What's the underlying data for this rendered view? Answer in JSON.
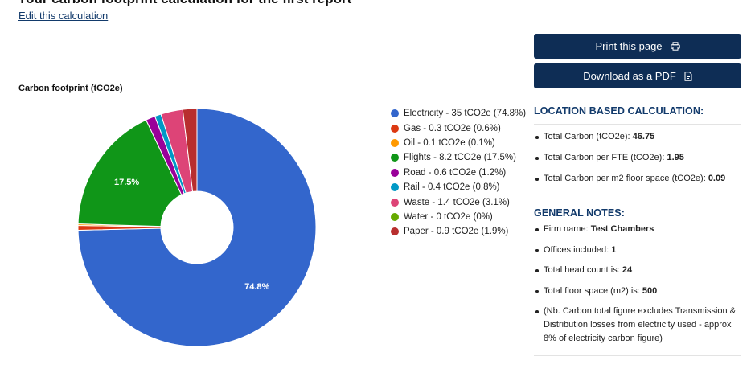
{
  "page": {
    "title_cut": "Your carbon footprint calculation for the first report",
    "edit_link": "Edit this calculation"
  },
  "actions": {
    "print_label": "Print this page",
    "pdf_label": "Download as a PDF"
  },
  "chart_data": {
    "type": "pie",
    "title": "Carbon footprint (tCO2e)",
    "donut": true,
    "legend_position": "right",
    "unit": "tCO2e",
    "slices": [
      {
        "label": "Electricity",
        "value": 35,
        "percent": 74.8,
        "color": "#3366cc",
        "legend": "Electricity - 35 tCO2e (74.8%)",
        "show_label": "74.8%"
      },
      {
        "label": "Gas",
        "value": 0.3,
        "percent": 0.6,
        "color": "#dc3912",
        "legend": "Gas - 0.3 tCO2e (0.6%)"
      },
      {
        "label": "Oil",
        "value": 0.1,
        "percent": 0.1,
        "color": "#ff9900",
        "legend": "Oil - 0.1 tCO2e (0.1%)"
      },
      {
        "label": "Flights",
        "value": 8.2,
        "percent": 17.5,
        "color": "#109618",
        "legend": "Flights - 8.2 tCO2e (17.5%)",
        "show_label": "17.5%"
      },
      {
        "label": "Road",
        "value": 0.6,
        "percent": 1.2,
        "color": "#990099",
        "legend": "Road - 0.6 tCO2e (1.2%)"
      },
      {
        "label": "Rail",
        "value": 0.4,
        "percent": 0.8,
        "color": "#0099c6",
        "legend": "Rail - 0.4 tCO2e (0.8%)"
      },
      {
        "label": "Waste",
        "value": 1.4,
        "percent": 3.1,
        "color": "#dd4477",
        "legend": "Waste - 1.4 tCO2e (3.1%)"
      },
      {
        "label": "Water",
        "value": 0,
        "percent": 0,
        "color": "#66aa00",
        "legend": "Water - 0 tCO2e (0%)"
      },
      {
        "label": "Paper",
        "value": 0.9,
        "percent": 1.9,
        "color": "#b82e2e",
        "legend": "Paper - 0.9 tCO2e (1.9%)"
      }
    ]
  },
  "location": {
    "heading": "LOCATION BASED CALCULATION:",
    "items": [
      {
        "label": "Total Carbon (tCO2e): ",
        "value": "46.75"
      },
      {
        "label": "Total Carbon per FTE (tCO2e): ",
        "value": "1.95"
      },
      {
        "label": "Total Carbon per m2 floor space (tCO2e): ",
        "value": "0.09"
      }
    ]
  },
  "notes": {
    "heading": "GENERAL NOTES:",
    "items": [
      {
        "label": "Firm name: ",
        "value": "Test Chambers"
      },
      {
        "label": "Offices included: ",
        "value": "1"
      },
      {
        "label": "Total head count is: ",
        "value": "24"
      },
      {
        "label": "Total floor space (m2) is: ",
        "value": "500"
      },
      {
        "label": "(Nb. Carbon total figure excludes Transmission & Distribution losses from electricity used - approx 8% of electricity carbon figure)",
        "value": ""
      }
    ]
  }
}
